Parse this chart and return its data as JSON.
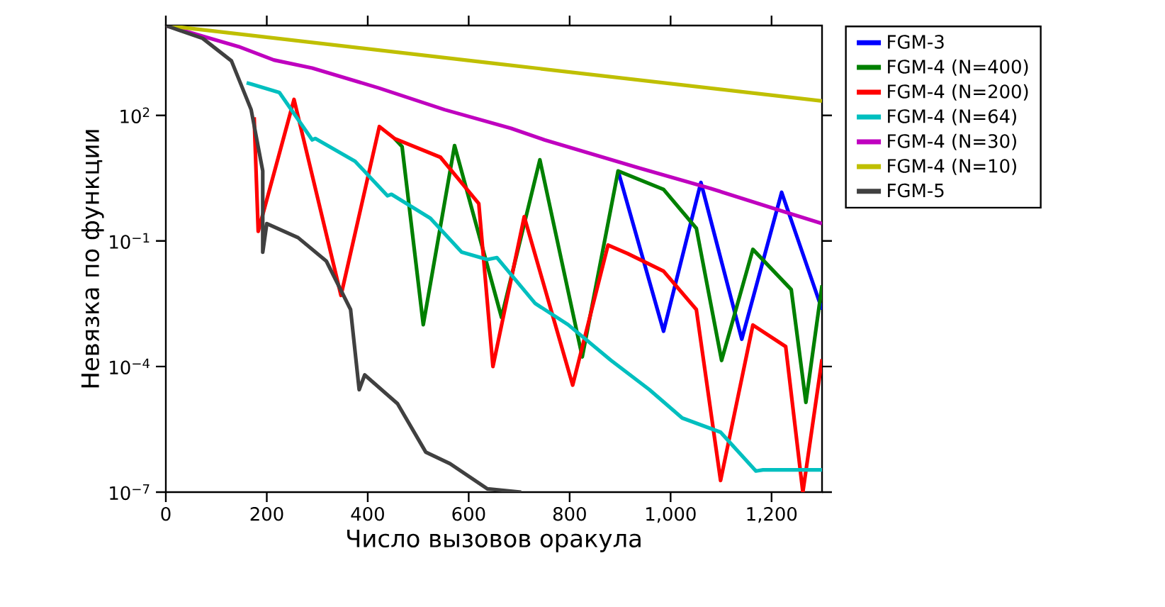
{
  "chart_data": {
    "type": "line",
    "xlabel": "Число вызовов оракула",
    "ylabel": "Невязка по функции",
    "log": "y",
    "legend": "top right",
    "grid": false,
    "line_style": "solid",
    "marker": "none",
    "xlim": [
      0,
      1300
    ],
    "xticks": [
      0,
      200,
      400,
      600,
      800,
      {
        "value": 1000,
        "label": "1,000"
      },
      {
        "value": 1200,
        "label": "1,200"
      }
    ],
    "ylim": [
      1e-07,
      14000
    ],
    "yticks": [
      {
        "value": 1e-07,
        "label": "10$^{−7}$"
      },
      {
        "value": 0.0001,
        "label": "10$^{−4}$"
      },
      {
        "value": 0.1,
        "label": "10$^{−1}$"
      },
      {
        "value": 100,
        "label": "10$^{2}$"
      }
    ],
    "series": [
      {
        "name": "FGM-3",
        "color": "#0000ff",
        "x": [
          896,
          986,
          1060,
          1141,
          1220,
          1300
        ],
        "values": [
          4.7,
          0.0007,
          2.5,
          0.00045,
          1.45,
          0.0023
        ]
      },
      {
        "name": "FGM-4 (N=400)",
        "color": "#008000",
        "x": [
          453,
          468,
          510,
          572,
          665,
          741,
          825,
          896,
          986,
          1051,
          1101,
          1163,
          1239,
          1268,
          1300
        ],
        "values": [
          28,
          18,
          0.001,
          19,
          0.0015,
          8.7,
          0.00017,
          4.7,
          1.7,
          0.2,
          0.00014,
          0.063,
          0.0069,
          1.4e-05,
          0.0087
        ]
      },
      {
        "name": "FGM-4 (N=200)",
        "color": "#ff0000",
        "x": [
          175,
          183,
          254,
          347,
          423,
          453,
          544,
          620,
          648,
          710,
          806,
          876,
          915,
          986,
          1051,
          1099,
          1163,
          1228,
          1262,
          1300
        ],
        "values": [
          90,
          0.17,
          240,
          0.005,
          54,
          28,
          10,
          0.78,
          0.0001,
          0.38,
          3.6e-05,
          0.08,
          0.05,
          0.019,
          0.0023,
          1.9e-07,
          0.00098,
          0.0003,
          1e-07,
          0.00015
        ]
      },
      {
        "name": "FGM-4 (N=64)",
        "color": "#00bfbf",
        "x": [
          160,
          169,
          225,
          290,
          296,
          375,
          439,
          447,
          524,
          586,
          637,
          656,
          732,
          797,
          882,
          958,
          1023,
          1099,
          1169,
          1183,
          1300
        ],
        "values": [
          600,
          560,
          350,
          26,
          28,
          8,
          1.2,
          1.3,
          0.35,
          0.054,
          0.036,
          0.04,
          0.0032,
          0.001,
          0.00014,
          2.8e-05,
          5.9e-06,
          2.7e-06,
          3.2e-07,
          3.4e-07,
          3.4e-07
        ]
      },
      {
        "name": "FGM-4 (N=30)",
        "color": "#bf00bf",
        "x": [
          0,
          144,
          214,
          290,
          422,
          552,
          684,
          750,
          938,
          1079,
          1220,
          1300
        ],
        "values": [
          14000,
          4400,
          2100,
          1350,
          450,
          137,
          49,
          26,
          5.5,
          1.8,
          0.52,
          0.26
        ]
      },
      {
        "name": "FGM-4 (N=10)",
        "color": "#bfbf00",
        "x": [
          0,
          650,
          1300
        ],
        "values": [
          14000,
          1750,
          220
        ]
      },
      {
        "name": "FGM-5",
        "color": "#404040",
        "x": [
          0,
          73,
          130,
          169,
          192,
          192,
          200,
          262,
          318,
          366,
          383,
          394,
          459,
          515,
          563,
          637,
          704
        ],
        "values": [
          14000,
          6900,
          2000,
          137,
          4.7,
          0.054,
          0.26,
          0.12,
          0.033,
          0.0023,
          2.8e-05,
          6.3e-05,
          1.3e-05,
          9e-07,
          4.8e-07,
          1.2e-07,
          1e-07
        ]
      }
    ]
  }
}
